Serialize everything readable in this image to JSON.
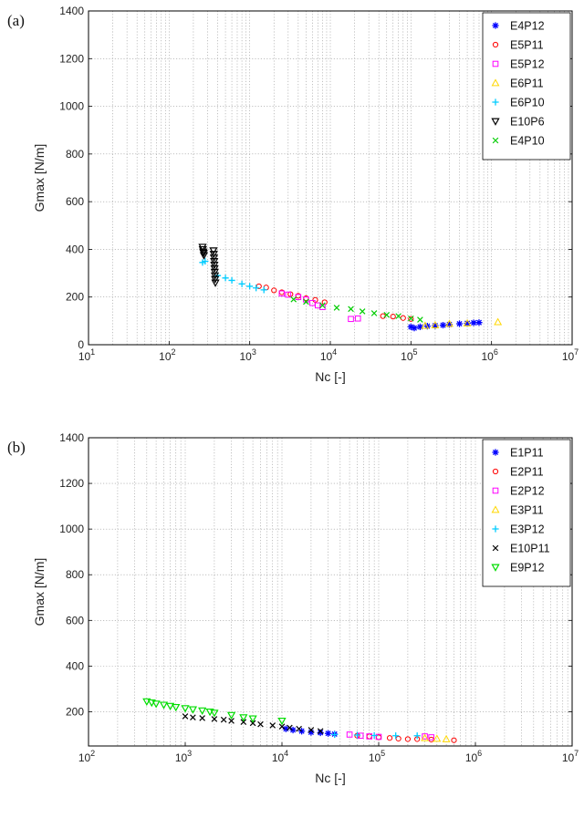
{
  "chart_data": [
    {
      "panel_label": "(a)",
      "type": "scatter",
      "xlabel": "Nc [-]",
      "ylabel": "Gmax [N/m]",
      "xscale": "log",
      "xlim": [
        10,
        10000000
      ],
      "ylim": [
        0,
        1400
      ],
      "yticks": [
        0,
        200,
        400,
        600,
        800,
        1000,
        1200,
        1400
      ],
      "grid": true,
      "legend_position": "top-right",
      "series": [
        {
          "name": "E4P12",
          "marker": "asterisk",
          "color": "#0000ff",
          "points": [
            [
              100000,
              75
            ],
            [
              110000,
              70
            ],
            [
              130000,
              75
            ],
            [
              160000,
              78
            ],
            [
              200000,
              80
            ],
            [
              250000,
              82
            ],
            [
              300000,
              85
            ],
            [
              400000,
              88
            ],
            [
              500000,
              90
            ],
            [
              600000,
              92
            ],
            [
              700000,
              93
            ]
          ]
        },
        {
          "name": "E5P11",
          "marker": "circle",
          "color": "#ff0000",
          "points": [
            [
              1300,
              245
            ],
            [
              1600,
              240
            ],
            [
              2000,
              228
            ],
            [
              2500,
              220
            ],
            [
              3200,
              212
            ],
            [
              4000,
              205
            ],
            [
              5000,
              195
            ],
            [
              6500,
              188
            ],
            [
              8500,
              178
            ],
            [
              45000,
              120
            ],
            [
              60000,
              118
            ],
            [
              80000,
              112
            ],
            [
              100000,
              108
            ]
          ]
        },
        {
          "name": "E5P12",
          "marker": "square",
          "color": "#ff00ff",
          "points": [
            [
              2500,
              215
            ],
            [
              3000,
              210
            ],
            [
              4000,
              200
            ],
            [
              5000,
              190
            ],
            [
              6000,
              175
            ],
            [
              7000,
              165
            ],
            [
              8000,
              158
            ],
            [
              18000,
              108
            ],
            [
              22000,
              110
            ]
          ]
        },
        {
          "name": "E6P11",
          "marker": "triangle-up",
          "color": "#ffd700",
          "points": [
            [
              150000,
              80
            ],
            [
              200000,
              82
            ],
            [
              300000,
              88
            ],
            [
              500000,
              90
            ],
            [
              1200000,
              95
            ]
          ]
        },
        {
          "name": "E6P10",
          "marker": "plus",
          "color": "#00ccff",
          "points": [
            [
              260,
              345
            ],
            [
              280,
              350
            ],
            [
              400,
              290
            ],
            [
              500,
              280
            ],
            [
              600,
              270
            ],
            [
              800,
              255
            ],
            [
              1000,
              245
            ],
            [
              1200,
              238
            ],
            [
              1500,
              230
            ]
          ]
        },
        {
          "name": "E10P6",
          "marker": "triangle-down",
          "color": "#000000",
          "points": [
            [
              260,
              410
            ],
            [
              262,
              400
            ],
            [
              265,
              390
            ],
            [
              268,
              385
            ],
            [
              270,
              375
            ],
            [
              355,
              395
            ],
            [
              358,
              380
            ],
            [
              360,
              365
            ],
            [
              362,
              350
            ],
            [
              364,
              335
            ],
            [
              366,
              320
            ],
            [
              368,
              305
            ],
            [
              370,
              290
            ],
            [
              372,
              275
            ],
            [
              375,
              260
            ]
          ]
        },
        {
          "name": "E4P10",
          "marker": "x",
          "color": "#00cc00",
          "points": [
            [
              3500,
              190
            ],
            [
              5000,
              180
            ],
            [
              8000,
              165
            ],
            [
              12000,
              155
            ],
            [
              18000,
              150
            ],
            [
              25000,
              140
            ],
            [
              35000,
              132
            ],
            [
              50000,
              125
            ],
            [
              70000,
              120
            ],
            [
              100000,
              110
            ],
            [
              130000,
              105
            ]
          ]
        }
      ]
    },
    {
      "panel_label": "(b)",
      "type": "scatter",
      "xlabel": "Nc [-]",
      "ylabel": "Gmax [N/m]",
      "xscale": "log",
      "xlim": [
        100,
        10000000
      ],
      "ylim": [
        50,
        1400
      ],
      "yticks": [
        200,
        400,
        600,
        800,
        1000,
        1200,
        1400
      ],
      "grid": true,
      "legend_position": "top-right",
      "series": [
        {
          "name": "E1P11",
          "marker": "asterisk",
          "color": "#0000ff",
          "points": [
            [
              11000,
              125
            ],
            [
              13000,
              120
            ],
            [
              16000,
              115
            ],
            [
              20000,
              110
            ],
            [
              25000,
              108
            ],
            [
              30000,
              105
            ],
            [
              35000,
              102
            ]
          ]
        },
        {
          "name": "E2P11",
          "marker": "circle",
          "color": "#ff0000",
          "points": [
            [
              60000,
              95
            ],
            [
              80000,
              92
            ],
            [
              100000,
              88
            ],
            [
              130000,
              85
            ],
            [
              160000,
              82
            ],
            [
              200000,
              80
            ],
            [
              250000,
              80
            ],
            [
              350000,
              78
            ],
            [
              600000,
              75
            ]
          ]
        },
        {
          "name": "E2P12",
          "marker": "square",
          "color": "#ff00ff",
          "points": [
            [
              50000,
              100
            ],
            [
              65000,
              95
            ],
            [
              80000,
              92
            ],
            [
              100000,
              90
            ],
            [
              300000,
              92
            ],
            [
              350000,
              88
            ]
          ]
        },
        {
          "name": "E3P11",
          "marker": "triangle-up",
          "color": "#ffd700",
          "points": [
            [
              300000,
              85
            ],
            [
              400000,
              82
            ],
            [
              500000,
              80
            ]
          ]
        },
        {
          "name": "E3P12",
          "marker": "plus",
          "color": "#00ccff",
          "points": [
            [
              35000,
              100
            ],
            [
              60000,
              98
            ],
            [
              90000,
              96
            ],
            [
              150000,
              95
            ],
            [
              250000,
              95
            ]
          ]
        },
        {
          "name": "E10P11",
          "marker": "x",
          "color": "#000000",
          "points": [
            [
              1000,
              180
            ],
            [
              1200,
              175
            ],
            [
              1500,
              172
            ],
            [
              2000,
              168
            ],
            [
              2500,
              165
            ],
            [
              3000,
              160
            ],
            [
              4000,
              155
            ],
            [
              5000,
              150
            ],
            [
              6000,
              145
            ],
            [
              8000,
              140
            ],
            [
              10000,
              135
            ],
            [
              12000,
              130
            ],
            [
              15000,
              125
            ],
            [
              20000,
              120
            ],
            [
              25000,
              115
            ]
          ]
        },
        {
          "name": "E9P12",
          "marker": "triangle-down",
          "color": "#00dd00",
          "points": [
            [
              400,
              245
            ],
            [
              450,
              240
            ],
            [
              500,
              235
            ],
            [
              600,
              230
            ],
            [
              700,
              225
            ],
            [
              800,
              220
            ],
            [
              1000,
              215
            ],
            [
              1200,
              210
            ],
            [
              1500,
              205
            ],
            [
              1800,
              200
            ],
            [
              2000,
              195
            ],
            [
              3000,
              185
            ],
            [
              4000,
              175
            ],
            [
              5000,
              170
            ],
            [
              10000,
              160
            ]
          ]
        }
      ]
    }
  ]
}
